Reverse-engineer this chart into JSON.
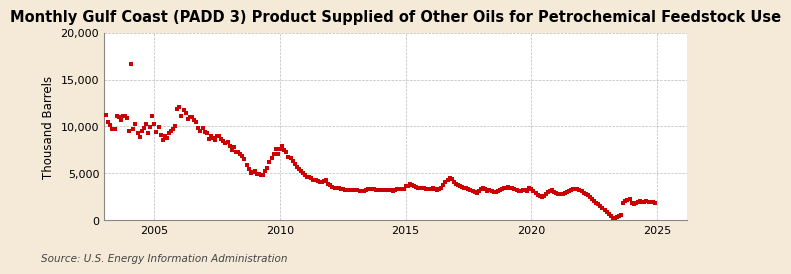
{
  "title": "Monthly Gulf Coast (PADD 3) Product Supplied of Other Oils for Petrochemical Feedstock Use",
  "ylabel": "Thousand Barrels",
  "source": "Source: U.S. Energy Information Administration",
  "fig_background_color": "#f5ead8",
  "plot_background_color": "#ffffff",
  "dot_color": "#cc0000",
  "xlim": [
    2003.0,
    2026.2
  ],
  "ylim": [
    0,
    20000
  ],
  "yticks": [
    0,
    5000,
    10000,
    15000,
    20000
  ],
  "xticks": [
    2005,
    2010,
    2015,
    2020,
    2025
  ],
  "title_fontsize": 10.5,
  "ylabel_fontsize": 8.5,
  "tick_fontsize": 8,
  "source_fontsize": 7.5,
  "data": [
    [
      2003.08,
      11200
    ],
    [
      2003.17,
      10500
    ],
    [
      2003.25,
      10200
    ],
    [
      2003.33,
      9700
    ],
    [
      2003.42,
      9700
    ],
    [
      2003.5,
      11100
    ],
    [
      2003.58,
      11000
    ],
    [
      2003.67,
      10700
    ],
    [
      2003.75,
      11100
    ],
    [
      2003.83,
      11100
    ],
    [
      2003.92,
      10900
    ],
    [
      2004.0,
      9500
    ],
    [
      2004.08,
      16700
    ],
    [
      2004.17,
      9700
    ],
    [
      2004.25,
      10300
    ],
    [
      2004.33,
      9300
    ],
    [
      2004.42,
      8900
    ],
    [
      2004.5,
      9500
    ],
    [
      2004.58,
      9800
    ],
    [
      2004.67,
      10300
    ],
    [
      2004.75,
      9300
    ],
    [
      2004.83,
      9900
    ],
    [
      2004.92,
      11100
    ],
    [
      2005.0,
      10300
    ],
    [
      2005.08,
      9400
    ],
    [
      2005.17,
      9900
    ],
    [
      2005.25,
      9100
    ],
    [
      2005.33,
      8600
    ],
    [
      2005.42,
      9000
    ],
    [
      2005.5,
      8800
    ],
    [
      2005.58,
      9300
    ],
    [
      2005.67,
      9500
    ],
    [
      2005.75,
      9700
    ],
    [
      2005.83,
      10000
    ],
    [
      2005.92,
      11900
    ],
    [
      2006.0,
      12100
    ],
    [
      2006.08,
      11100
    ],
    [
      2006.17,
      11800
    ],
    [
      2006.25,
      11400
    ],
    [
      2006.33,
      10800
    ],
    [
      2006.42,
      11000
    ],
    [
      2006.5,
      11000
    ],
    [
      2006.58,
      10700
    ],
    [
      2006.67,
      10500
    ],
    [
      2006.75,
      9800
    ],
    [
      2006.83,
      9500
    ],
    [
      2006.92,
      9800
    ],
    [
      2007.0,
      9400
    ],
    [
      2007.08,
      9300
    ],
    [
      2007.17,
      8700
    ],
    [
      2007.25,
      9000
    ],
    [
      2007.33,
      8800
    ],
    [
      2007.42,
      8600
    ],
    [
      2007.5,
      9000
    ],
    [
      2007.58,
      9000
    ],
    [
      2007.67,
      8700
    ],
    [
      2007.75,
      8500
    ],
    [
      2007.83,
      8200
    ],
    [
      2007.92,
      8300
    ],
    [
      2008.0,
      7900
    ],
    [
      2008.08,
      7500
    ],
    [
      2008.17,
      7800
    ],
    [
      2008.25,
      7300
    ],
    [
      2008.33,
      7300
    ],
    [
      2008.42,
      7100
    ],
    [
      2008.5,
      6900
    ],
    [
      2008.58,
      6500
    ],
    [
      2008.67,
      5900
    ],
    [
      2008.75,
      5500
    ],
    [
      2008.83,
      5100
    ],
    [
      2008.92,
      5200
    ],
    [
      2009.0,
      5300
    ],
    [
      2009.08,
      4900
    ],
    [
      2009.17,
      4900
    ],
    [
      2009.25,
      4800
    ],
    [
      2009.33,
      4800
    ],
    [
      2009.42,
      5300
    ],
    [
      2009.5,
      5600
    ],
    [
      2009.58,
      6200
    ],
    [
      2009.67,
      6600
    ],
    [
      2009.75,
      7100
    ],
    [
      2009.83,
      7600
    ],
    [
      2009.92,
      7100
    ],
    [
      2010.0,
      7600
    ],
    [
      2010.08,
      7900
    ],
    [
      2010.17,
      7500
    ],
    [
      2010.25,
      7300
    ],
    [
      2010.33,
      6700
    ],
    [
      2010.42,
      6600
    ],
    [
      2010.5,
      6300
    ],
    [
      2010.58,
      6000
    ],
    [
      2010.67,
      5700
    ],
    [
      2010.75,
      5500
    ],
    [
      2010.83,
      5300
    ],
    [
      2010.92,
      5000
    ],
    [
      2011.0,
      4800
    ],
    [
      2011.08,
      4600
    ],
    [
      2011.17,
      4600
    ],
    [
      2011.25,
      4500
    ],
    [
      2011.33,
      4300
    ],
    [
      2011.42,
      4300
    ],
    [
      2011.5,
      4200
    ],
    [
      2011.58,
      4100
    ],
    [
      2011.67,
      4100
    ],
    [
      2011.75,
      4200
    ],
    [
      2011.83,
      4300
    ],
    [
      2011.92,
      3900
    ],
    [
      2012.0,
      3800
    ],
    [
      2012.08,
      3600
    ],
    [
      2012.17,
      3500
    ],
    [
      2012.25,
      3500
    ],
    [
      2012.33,
      3400
    ],
    [
      2012.42,
      3300
    ],
    [
      2012.5,
      3300
    ],
    [
      2012.58,
      3200
    ],
    [
      2012.67,
      3200
    ],
    [
      2012.75,
      3200
    ],
    [
      2012.83,
      3200
    ],
    [
      2012.92,
      3200
    ],
    [
      2013.0,
      3200
    ],
    [
      2013.08,
      3200
    ],
    [
      2013.17,
      3100
    ],
    [
      2013.25,
      3100
    ],
    [
      2013.33,
      3100
    ],
    [
      2013.42,
      3200
    ],
    [
      2013.5,
      3300
    ],
    [
      2013.58,
      3300
    ],
    [
      2013.67,
      3300
    ],
    [
      2013.75,
      3300
    ],
    [
      2013.83,
      3200
    ],
    [
      2013.92,
      3200
    ],
    [
      2014.0,
      3200
    ],
    [
      2014.08,
      3200
    ],
    [
      2014.17,
      3200
    ],
    [
      2014.25,
      3200
    ],
    [
      2014.33,
      3200
    ],
    [
      2014.42,
      3200
    ],
    [
      2014.5,
      3100
    ],
    [
      2014.58,
      3200
    ],
    [
      2014.67,
      3300
    ],
    [
      2014.75,
      3300
    ],
    [
      2014.83,
      3300
    ],
    [
      2014.92,
      3300
    ],
    [
      2015.0,
      3700
    ],
    [
      2015.08,
      3700
    ],
    [
      2015.17,
      3900
    ],
    [
      2015.25,
      3800
    ],
    [
      2015.33,
      3700
    ],
    [
      2015.42,
      3600
    ],
    [
      2015.5,
      3500
    ],
    [
      2015.58,
      3500
    ],
    [
      2015.67,
      3500
    ],
    [
      2015.75,
      3400
    ],
    [
      2015.83,
      3300
    ],
    [
      2015.92,
      3300
    ],
    [
      2016.0,
      3300
    ],
    [
      2016.08,
      3400
    ],
    [
      2016.17,
      3300
    ],
    [
      2016.25,
      3200
    ],
    [
      2016.33,
      3300
    ],
    [
      2016.42,
      3500
    ],
    [
      2016.5,
      3800
    ],
    [
      2016.58,
      4100
    ],
    [
      2016.67,
      4300
    ],
    [
      2016.75,
      4500
    ],
    [
      2016.83,
      4400
    ],
    [
      2016.92,
      4100
    ],
    [
      2017.0,
      3900
    ],
    [
      2017.08,
      3800
    ],
    [
      2017.17,
      3700
    ],
    [
      2017.25,
      3600
    ],
    [
      2017.33,
      3500
    ],
    [
      2017.42,
      3400
    ],
    [
      2017.5,
      3300
    ],
    [
      2017.58,
      3200
    ],
    [
      2017.67,
      3100
    ],
    [
      2017.75,
      3000
    ],
    [
      2017.83,
      2900
    ],
    [
      2017.92,
      3100
    ],
    [
      2018.0,
      3300
    ],
    [
      2018.08,
      3400
    ],
    [
      2018.17,
      3300
    ],
    [
      2018.25,
      3100
    ],
    [
      2018.33,
      3200
    ],
    [
      2018.42,
      3100
    ],
    [
      2018.5,
      3000
    ],
    [
      2018.58,
      3000
    ],
    [
      2018.67,
      3100
    ],
    [
      2018.75,
      3200
    ],
    [
      2018.83,
      3300
    ],
    [
      2018.92,
      3400
    ],
    [
      2019.0,
      3500
    ],
    [
      2019.08,
      3600
    ],
    [
      2019.17,
      3500
    ],
    [
      2019.25,
      3400
    ],
    [
      2019.33,
      3300
    ],
    [
      2019.42,
      3200
    ],
    [
      2019.5,
      3100
    ],
    [
      2019.58,
      3100
    ],
    [
      2019.67,
      3200
    ],
    [
      2019.75,
      3200
    ],
    [
      2019.83,
      3100
    ],
    [
      2019.92,
      3500
    ],
    [
      2020.0,
      3300
    ],
    [
      2020.08,
      3100
    ],
    [
      2020.17,
      2900
    ],
    [
      2020.25,
      2700
    ],
    [
      2020.33,
      2600
    ],
    [
      2020.42,
      2500
    ],
    [
      2020.5,
      2600
    ],
    [
      2020.58,
      2800
    ],
    [
      2020.67,
      3000
    ],
    [
      2020.75,
      3100
    ],
    [
      2020.83,
      3200
    ],
    [
      2020.92,
      3000
    ],
    [
      2021.0,
      2900
    ],
    [
      2021.08,
      2800
    ],
    [
      2021.17,
      2800
    ],
    [
      2021.25,
      2800
    ],
    [
      2021.33,
      2900
    ],
    [
      2021.42,
      3000
    ],
    [
      2021.5,
      3100
    ],
    [
      2021.58,
      3200
    ],
    [
      2021.67,
      3300
    ],
    [
      2021.75,
      3300
    ],
    [
      2021.83,
      3300
    ],
    [
      2021.92,
      3200
    ],
    [
      2022.0,
      3100
    ],
    [
      2022.08,
      2900
    ],
    [
      2022.17,
      2800
    ],
    [
      2022.25,
      2700
    ],
    [
      2022.33,
      2500
    ],
    [
      2022.42,
      2300
    ],
    [
      2022.5,
      2100
    ],
    [
      2022.58,
      1900
    ],
    [
      2022.67,
      1700
    ],
    [
      2022.75,
      1500
    ],
    [
      2022.83,
      1300
    ],
    [
      2022.92,
      1100
    ],
    [
      2023.0,
      900
    ],
    [
      2023.08,
      700
    ],
    [
      2023.17,
      500
    ],
    [
      2023.25,
      300
    ],
    [
      2023.33,
      300
    ],
    [
      2023.42,
      400
    ],
    [
      2023.5,
      500
    ],
    [
      2023.58,
      600
    ],
    [
      2023.67,
      1900
    ],
    [
      2023.75,
      2100
    ],
    [
      2023.83,
      2200
    ],
    [
      2023.92,
      2300
    ],
    [
      2024.0,
      1900
    ],
    [
      2024.08,
      1700
    ],
    [
      2024.17,
      1800
    ],
    [
      2024.25,
      2000
    ],
    [
      2024.33,
      2100
    ],
    [
      2024.42,
      2000
    ],
    [
      2024.5,
      2000
    ],
    [
      2024.58,
      2100
    ],
    [
      2024.67,
      2000
    ],
    [
      2024.75,
      2000
    ],
    [
      2024.83,
      2000
    ],
    [
      2024.92,
      1900
    ]
  ]
}
